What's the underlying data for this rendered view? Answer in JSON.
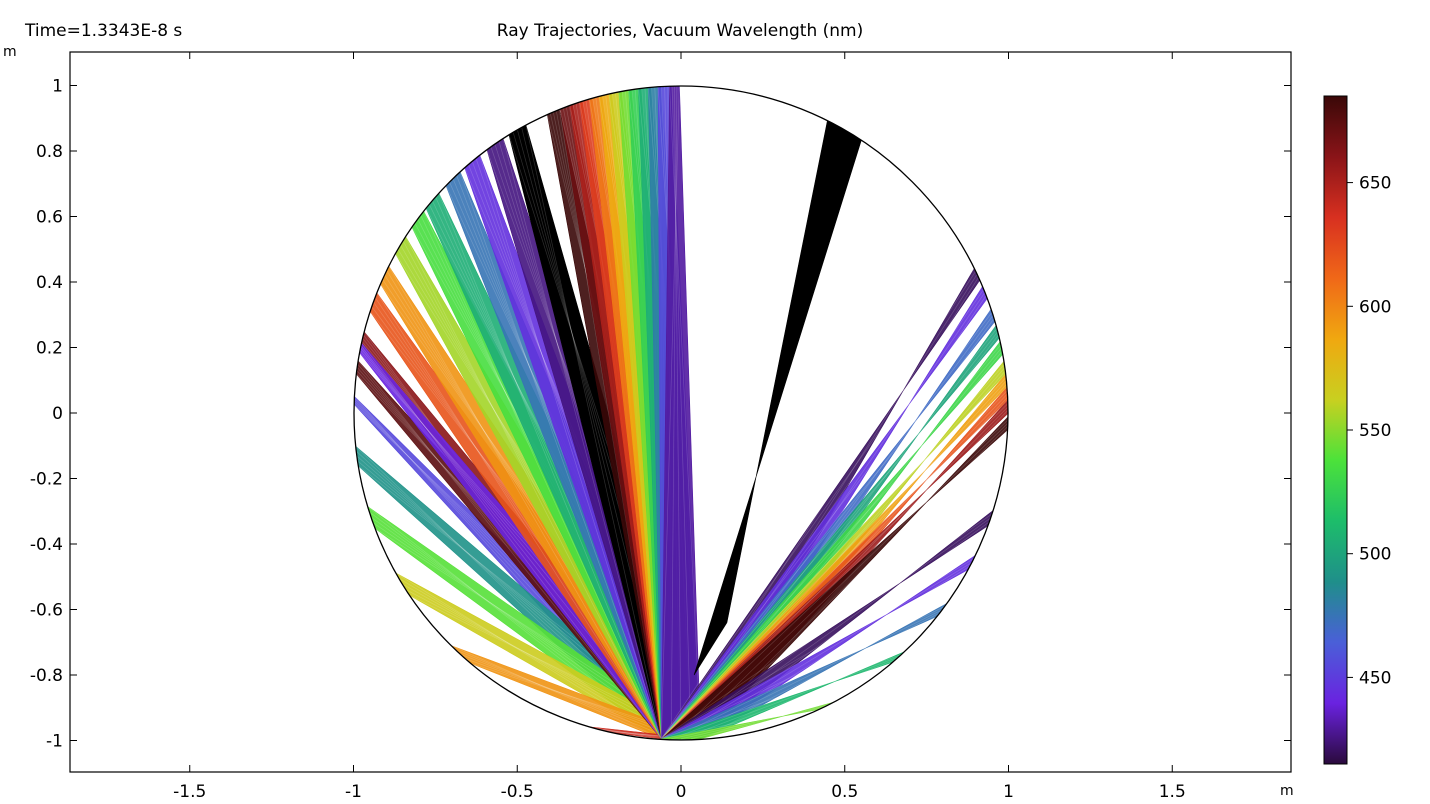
{
  "chart_data": {
    "type": "ray-trajectory",
    "time_label": "Time=1.3343E-8 s",
    "title": "Ray Trajectories, Vacuum Wavelength (nm)",
    "x_unit": "m",
    "y_unit": "m",
    "xlim": [
      -1.88,
      1.88
    ],
    "ylim": [
      -1.1,
      1.1
    ],
    "x_ticks": [
      -1.5,
      -1,
      -0.5,
      0,
      0.5,
      1,
      1.5
    ],
    "x_tick_labels": [
      "-1.5",
      "-1",
      "-0.5",
      "0",
      "0.5",
      "1",
      "1.5"
    ],
    "y_ticks": [
      1,
      0.8,
      0.6,
      0.4,
      0.2,
      0,
      -0.2,
      -0.4,
      -0.6,
      -0.8,
      -1
    ],
    "y_tick_labels": [
      "1",
      "0.8",
      "0.6",
      "0.4",
      "0.2",
      "0",
      "-0.2",
      "-0.4",
      "-0.6",
      "-0.8",
      "-1"
    ],
    "circle": {
      "center": [
        0,
        0
      ],
      "radius": 1
    },
    "colorbar": {
      "min": 415,
      "max": 685,
      "ticks": [
        650,
        600,
        550,
        500,
        450
      ],
      "tick_labels": [
        "650",
        "600",
        "550",
        "500",
        "450"
      ],
      "colormap": "rainbow-dark",
      "stops": [
        "#2a0a3c",
        "#6a22e0",
        "#4a5fd8",
        "#1f8f8a",
        "#1dbd6a",
        "#4ce23a",
        "#c8d020",
        "#f0a810",
        "#f06818",
        "#d83020",
        "#8a1418",
        "#3a0808"
      ]
    },
    "fans": [
      {
        "group": "left",
        "wavelength": 455,
        "tip": [
          -0.995,
          0.04
        ],
        "width": 0.012
      },
      {
        "group": "left",
        "wavelength": 490,
        "tip": [
          -0.99,
          -0.13
        ],
        "width": 0.03
      },
      {
        "group": "left",
        "wavelength": 540,
        "tip": [
          -0.955,
          -0.32
        ],
        "width": 0.035
      },
      {
        "group": "left",
        "wavelength": 565,
        "tip": [
          -0.85,
          -0.52
        ],
        "width": 0.04
      },
      {
        "group": "left",
        "wavelength": 595,
        "tip": [
          -0.68,
          -0.74
        ],
        "width": 0.04
      },
      {
        "group": "left",
        "wavelength": 640,
        "tip": [
          -0.26,
          -0.965
        ],
        "width": 0.03
      },
      {
        "group": "left",
        "wavelength": 675,
        "tip": [
          -0.985,
          0.14
        ],
        "width": 0.02
      },
      {
        "group": "left",
        "wavelength": 660,
        "tip": [
          -0.975,
          0.23
        ],
        "width": 0.02
      },
      {
        "group": "left",
        "wavelength": 440,
        "tip": [
          -0.98,
          0.2
        ],
        "width": 0.015
      },
      {
        "group": "left",
        "wavelength": 620,
        "tip": [
          -0.94,
          0.34
        ],
        "width": 0.03
      },
      {
        "group": "left",
        "wavelength": 595,
        "tip": [
          -0.9,
          0.42
        ],
        "width": 0.03
      },
      {
        "group": "left",
        "wavelength": 555,
        "tip": [
          -0.85,
          0.51
        ],
        "width": 0.03
      },
      {
        "group": "left",
        "wavelength": 535,
        "tip": [
          -0.8,
          0.59
        ],
        "width": 0.03
      },
      {
        "group": "left",
        "wavelength": 505,
        "tip": [
          -0.76,
          0.65
        ],
        "width": 0.03
      },
      {
        "group": "left",
        "wavelength": 475,
        "tip": [
          -0.69,
          0.71
        ],
        "width": 0.03
      },
      {
        "group": "left",
        "wavelength": 445,
        "tip": [
          -0.63,
          0.76
        ],
        "width": 0.03
      },
      {
        "group": "left",
        "wavelength": 425,
        "tip": [
          -0.56,
          0.81
        ],
        "width": 0.03
      },
      {
        "group": "left",
        "wavelength": 0,
        "tip": [
          -0.5,
          0.866
        ],
        "width": 0.03
      },
      {
        "group": "top",
        "wavelength": 685,
        "tip": [
          -0.39,
          0.92
        ],
        "width": 0.02
      },
      {
        "group": "top",
        "wavelength": 670,
        "tip": [
          -0.35,
          0.935
        ],
        "width": 0.02
      },
      {
        "group": "top",
        "wavelength": 650,
        "tip": [
          -0.32,
          0.945
        ],
        "width": 0.02
      },
      {
        "group": "top",
        "wavelength": 630,
        "tip": [
          -0.29,
          0.955
        ],
        "width": 0.02
      },
      {
        "group": "top",
        "wavelength": 605,
        "tip": [
          -0.26,
          0.964
        ],
        "width": 0.02
      },
      {
        "group": "top",
        "wavelength": 585,
        "tip": [
          -0.23,
          0.972
        ],
        "width": 0.02
      },
      {
        "group": "top",
        "wavelength": 565,
        "tip": [
          -0.2,
          0.978
        ],
        "width": 0.02
      },
      {
        "group": "top",
        "wavelength": 545,
        "tip": [
          -0.17,
          0.984
        ],
        "width": 0.02
      },
      {
        "group": "top",
        "wavelength": 525,
        "tip": [
          -0.14,
          0.99
        ],
        "width": 0.02
      },
      {
        "group": "top",
        "wavelength": 505,
        "tip": [
          -0.11,
          0.993
        ],
        "width": 0.02
      },
      {
        "group": "top",
        "wavelength": 480,
        "tip": [
          -0.08,
          0.996
        ],
        "width": 0.02
      },
      {
        "group": "top",
        "wavelength": 455,
        "tip": [
          -0.05,
          0.998
        ],
        "width": 0.02
      },
      {
        "group": "top",
        "wavelength": 430,
        "tip": [
          -0.02,
          1.0
        ],
        "width": 0.015
      },
      {
        "group": "center",
        "wavelength": 0,
        "tip": [
          0.5,
          0.866
        ],
        "width": 0.06
      },
      {
        "group": "right",
        "wavelength": 420,
        "tip": [
          0.905,
          0.425
        ],
        "width": 0.02
      },
      {
        "group": "right",
        "wavelength": 445,
        "tip": [
          0.93,
          0.37
        ],
        "width": 0.02
      },
      {
        "group": "right",
        "wavelength": 470,
        "tip": [
          0.955,
          0.3
        ],
        "width": 0.02
      },
      {
        "group": "right",
        "wavelength": 500,
        "tip": [
          0.97,
          0.25
        ],
        "width": 0.02
      },
      {
        "group": "right",
        "wavelength": 530,
        "tip": [
          0.98,
          0.2
        ],
        "width": 0.02
      },
      {
        "group": "right",
        "wavelength": 560,
        "tip": [
          0.99,
          0.14
        ],
        "width": 0.02
      },
      {
        "group": "right",
        "wavelength": 590,
        "tip": [
          0.995,
          0.1
        ],
        "width": 0.02
      },
      {
        "group": "right",
        "wavelength": 620,
        "tip": [
          0.998,
          0.06
        ],
        "width": 0.02
      },
      {
        "group": "right",
        "wavelength": 655,
        "tip": [
          1.0,
          0.02
        ],
        "width": 0.02
      },
      {
        "group": "right",
        "wavelength": 685,
        "tip": [
          0.998,
          -0.03
        ],
        "width": 0.02
      },
      {
        "group": "lower-right",
        "wavelength": 420,
        "tip": [
          0.95,
          -0.32
        ],
        "width": 0.025
      },
      {
        "group": "lower-right",
        "wavelength": 445,
        "tip": [
          0.89,
          -0.455
        ],
        "width": 0.025
      },
      {
        "group": "lower-right",
        "wavelength": 475,
        "tip": [
          0.8,
          -0.6
        ],
        "width": 0.025
      },
      {
        "group": "lower-right",
        "wavelength": 510,
        "tip": [
          0.67,
          -0.745
        ],
        "width": 0.025
      },
      {
        "group": "lower-right",
        "wavelength": 545,
        "tip": [
          0.45,
          -0.893
        ],
        "width": 0.025
      }
    ]
  }
}
